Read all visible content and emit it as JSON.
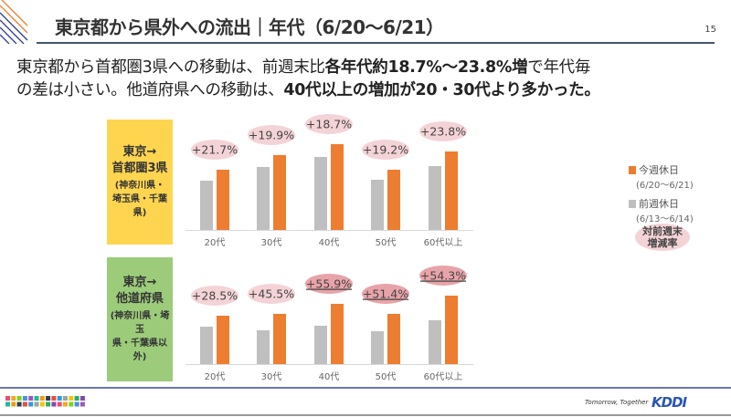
{
  "header": {
    "title": "東京都から県外への流出｜年代（6/20〜6/21）",
    "page_number": "15"
  },
  "lead": {
    "line1_a": "東京都から首都圏3県への移動は、前週末比",
    "line1_b": "各年代約18.7%〜23.8%増",
    "line1_c": "で年代毎",
    "line2_a": "の差は小さい。他道府県への移動は、",
    "line2_b": "40代以上の増加が20・30代より多かった。"
  },
  "panels": [
    {
      "title1": "東京→",
      "title2": "首都圏3県",
      "sub": "(神奈川県・\n埼玉県・千葉県)",
      "color": "#ffd54f"
    },
    {
      "title1": "東京→",
      "title2": "他道府県",
      "sub": "(神奈川県・埼玉\n県・千葉県以外)",
      "color": "#9ccb7a"
    }
  ],
  "legend": {
    "this_week": "今週休日",
    "this_week_dates": "(6/20〜6/21)",
    "last_week": "前週休日",
    "last_week_dates": "(6/13〜6/14)",
    "rate_label": "対前週末\n増減率"
  },
  "colors": {
    "this_week": "#ed7d31",
    "last_week": "#bfbfbf",
    "bubble": "#f4d3d6",
    "bubble_strong": "#e8a3a9"
  },
  "chart_data": [
    {
      "type": "bar",
      "title": "東京→首都圏3県",
      "categories": [
        "20代",
        "30代",
        "40代",
        "50代",
        "60代以上"
      ],
      "series": [
        {
          "name": "前週休日",
          "values": [
            54,
            69,
            80,
            55,
            70
          ]
        },
        {
          "name": "今週休日",
          "values": [
            66,
            82,
            94,
            66,
            86
          ]
        }
      ],
      "annotations": [
        "+21.7%",
        "+19.9%",
        "+18.7%",
        "+19.2%",
        "+23.8%"
      ],
      "highlight": [
        false,
        false,
        false,
        false,
        false
      ],
      "yaxis_visible": false,
      "grid": false,
      "legend": "right"
    },
    {
      "type": "bar",
      "title": "東京→他道府県",
      "categories": [
        "20代",
        "30代",
        "40代",
        "50代",
        "60代以上"
      ],
      "series": [
        {
          "name": "前週休日",
          "values": [
            41,
            37,
            42,
            36,
            48
          ]
        },
        {
          "name": "今週休日",
          "values": [
            53,
            55,
            66,
            55,
            75
          ]
        }
      ],
      "annotations": [
        "+28.5%",
        "+45.5%",
        "+55.9%",
        "+51.4%",
        "+54.3%"
      ],
      "highlight": [
        false,
        false,
        true,
        true,
        true
      ],
      "yaxis_visible": false,
      "grid": false,
      "legend": "right"
    }
  ]
}
